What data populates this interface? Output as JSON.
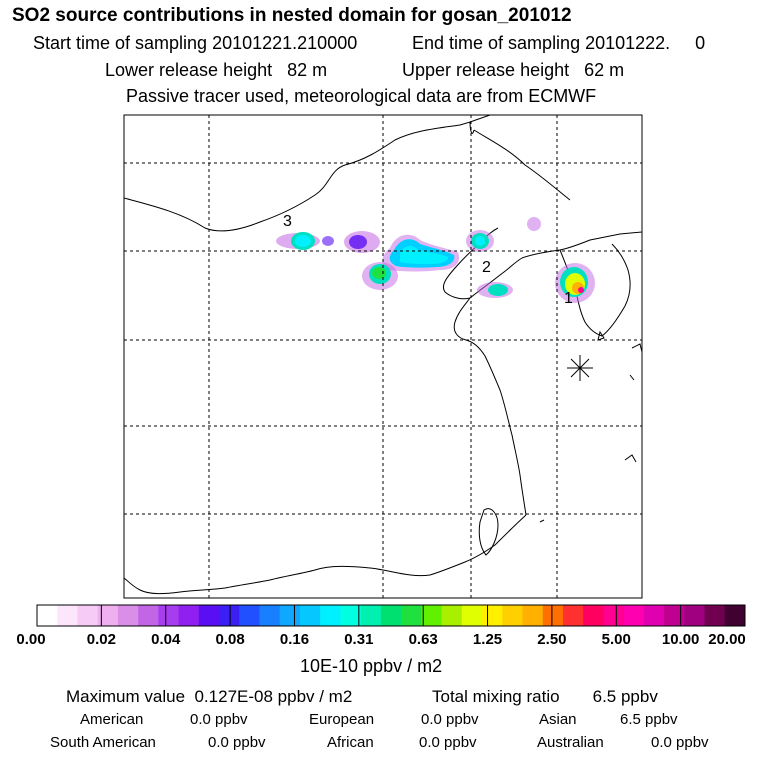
{
  "header": {
    "title": "SO2 source contributions in nested domain for gosan_201012",
    "start_sampling": "Start time of sampling 20101221.210000",
    "end_sampling": "End time of sampling 20101222.     0",
    "lower_release": "Lower release height   82 m",
    "upper_release": "Upper release height   62 m",
    "tracer_note": "Passive tracer used, meteorological data are from ECMWF"
  },
  "map": {
    "markers": [
      {
        "label": "3"
      },
      {
        "label": "2"
      },
      {
        "label": "1"
      }
    ],
    "receptor_symbol": "✳"
  },
  "colorbar": {
    "colors": [
      "#ffffff",
      "#fbe6fb",
      "#f6ccf6",
      "#eeb0ee",
      "#d98ee8",
      "#c266e6",
      "#a83cef",
      "#9020f0",
      "#5a0ff2",
      "#3a20f5",
      "#2050ff",
      "#1880ff",
      "#10a8ff",
      "#06c8ff",
      "#00f0ff",
      "#00ffe0",
      "#00f0b0",
      "#00e070",
      "#20e040",
      "#60f000",
      "#a8f000",
      "#e0ff00",
      "#fff000",
      "#ffd000",
      "#ffb000",
      "#ff7000",
      "#ff3030",
      "#ff0060",
      "#ff0090",
      "#ff00b0",
      "#e000b0",
      "#c00090",
      "#a00080",
      "#700050",
      "#400030"
    ],
    "tick_labels": [
      "0.00",
      "0.02",
      "0.04",
      "0.08",
      "0.16",
      "0.31",
      "0.63",
      "1.25",
      "2.50",
      "5.00",
      "10.00",
      "20.00"
    ],
    "units": "10E-10 ppbv / m2"
  },
  "summary": {
    "maximum": "Maximum value  0.127E-08 ppbv / m2",
    "total": "Total mixing ratio       6.5 ppbv",
    "regions": [
      {
        "name": "American",
        "value": "0.0 ppbv"
      },
      {
        "name": "European",
        "value": "0.0 ppbv"
      },
      {
        "name": "Asian",
        "value": "6.5 ppbv"
      },
      {
        "name": "South American",
        "value": "0.0 ppbv"
      },
      {
        "name": "African",
        "value": "0.0 ppbv"
      },
      {
        "name": "Australian",
        "value": "0.0 ppbv"
      }
    ]
  }
}
